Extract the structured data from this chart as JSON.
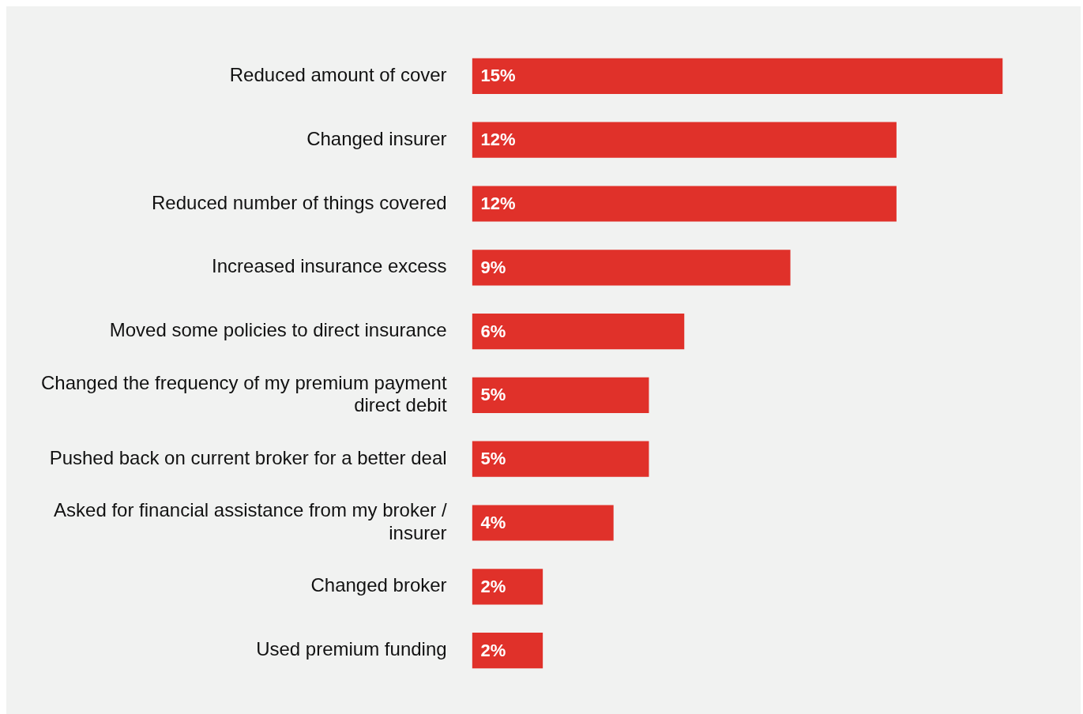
{
  "chart_data": {
    "type": "bar",
    "orientation": "horizontal",
    "categories": [
      "Reduced amount of cover",
      "Changed insurer",
      "Reduced number of things covered",
      "Increased insurance excess",
      "Moved some policies to direct insurance",
      "Changed the frequency of my premium payment direct debit",
      "Pushed back on current broker for a better deal",
      "Asked for financial assistance from my broker / insurer",
      "Changed broker",
      "Used premium funding"
    ],
    "values": [
      15,
      12,
      12,
      9,
      6,
      5,
      5,
      4,
      2,
      2
    ],
    "value_labels": [
      "15%",
      "12%",
      "12%",
      "9%",
      "6%",
      "5%",
      "5%",
      "4%",
      "2%",
      "2%"
    ],
    "color": "#e0312a",
    "legend": false
  }
}
